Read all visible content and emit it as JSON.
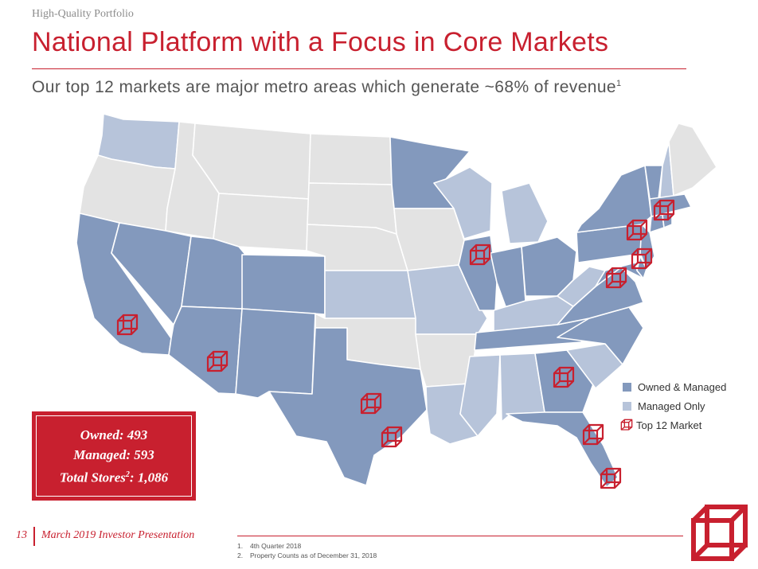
{
  "header": {
    "eyebrow": "High-Quality Portfolio",
    "title": "National Platform with a Focus in Core Markets",
    "subtitle": "Our top 12 markets are major metro areas which generate ~68% of revenue",
    "subtitle_footnote": "1"
  },
  "colors": {
    "brand_red": "#c8202f",
    "owned_managed": "#8399bd",
    "managed_only": "#b7c4da",
    "no_presence": "#e3e3e3"
  },
  "legend": {
    "owned_managed": "Owned & Managed",
    "managed_only": "Managed Only",
    "top_market": "Top 12 Market"
  },
  "stats": {
    "owned_label": "Owned:",
    "owned_value": "493",
    "managed_label": "Managed:",
    "managed_value": "593",
    "total_label": "Total Stores",
    "total_footnote": "2",
    "total_separator": ":",
    "total_value": "1,086"
  },
  "map": {
    "owned_managed_states": [
      "CA",
      "NV",
      "UT",
      "AZ",
      "CO",
      "NM",
      "TX",
      "MN",
      "IL",
      "IN",
      "OH",
      "PA",
      "NY",
      "NJ",
      "MD",
      "VA",
      "NC",
      "TN",
      "GA",
      "FL",
      "MA",
      "CT",
      "RI",
      "VT",
      "DE"
    ],
    "managed_only_states": [
      "WA",
      "WI",
      "MI",
      "KS",
      "MO",
      "LA",
      "MS",
      "AL",
      "SC",
      "KY",
      "WV",
      "NH"
    ],
    "top_markets": [
      "Los Angeles",
      "Phoenix",
      "Dallas",
      "Houston",
      "Chicago",
      "Atlanta",
      "Orlando",
      "Miami",
      "Washington DC",
      "Philadelphia",
      "New York",
      "Boston"
    ]
  },
  "footer": {
    "page_number": "13",
    "presentation_title": "March 2019 Investor Presentation",
    "footnotes": [
      {
        "num": "1.",
        "text": "4th Quarter 2018"
      },
      {
        "num": "2.",
        "text": "Property Counts as of December 31, 2018"
      }
    ]
  },
  "icons": {
    "top_market": "cube-outline-icon",
    "corner_logo": "cube-logo-icon"
  }
}
